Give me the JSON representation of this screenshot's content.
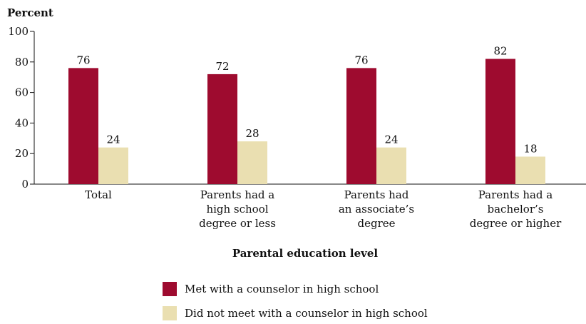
{
  "chart_data": {
    "type": "bar",
    "ylabel": "Percent",
    "xlabel": "Parental education level",
    "ylim": [
      0,
      100
    ],
    "yticks": [
      0,
      20,
      40,
      60,
      80,
      100
    ],
    "categories": [
      [
        "Total"
      ],
      [
        "Parents had a",
        "high school",
        "degree or less"
      ],
      [
        "Parents had",
        "an associate’s",
        "degree"
      ],
      [
        "Parents had a",
        "bachelor’s",
        "degree or higher"
      ]
    ],
    "series": [
      {
        "name": "Met with a counselor in high school",
        "color": "#9e0b2f",
        "values": [
          76,
          72,
          76,
          82
        ]
      },
      {
        "name": "Did not meet with a counselor in high school",
        "color": "#eadfb1",
        "values": [
          24,
          28,
          24,
          18
        ]
      }
    ],
    "legend_position": "bottom-center",
    "grid": false
  }
}
